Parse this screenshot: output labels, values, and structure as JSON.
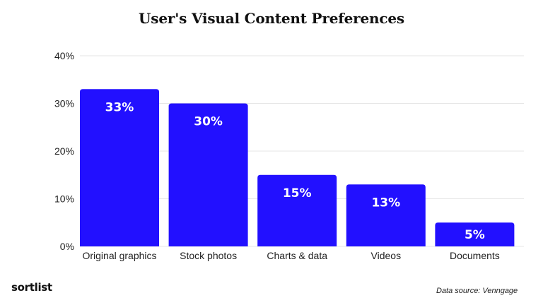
{
  "chart_data": {
    "type": "bar",
    "title": "User's Visual Content Preferences",
    "categories": [
      "Original graphics",
      "Stock photos",
      "Charts & data",
      "Videos",
      "Documents"
    ],
    "values": [
      33,
      30,
      15,
      13,
      5
    ],
    "value_labels": [
      "33%",
      "30%",
      "15%",
      "13%",
      "5%"
    ],
    "y_ticks": [
      0,
      10,
      20,
      30,
      40
    ],
    "y_tick_labels": [
      "0%",
      "10%",
      "20%",
      "30%",
      "40%"
    ],
    "ylim": [
      0,
      40
    ],
    "xlabel": "",
    "ylabel": "",
    "grid": true,
    "bar_color": "#2210ff",
    "grid_color": "#e6e6e6"
  },
  "footer": {
    "brand": "sortlist",
    "source": "Data source: Venngage"
  }
}
